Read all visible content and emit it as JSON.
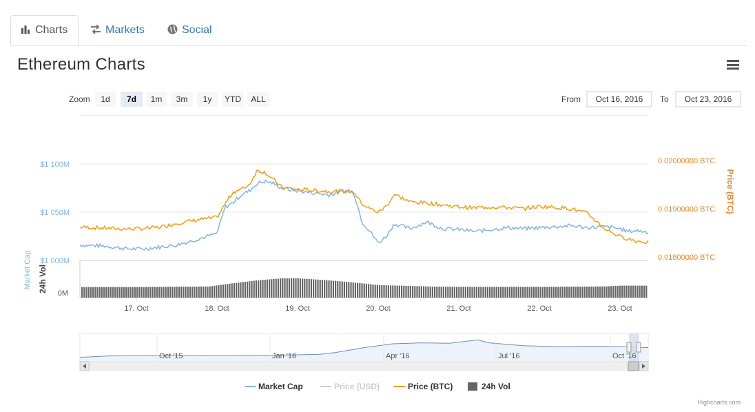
{
  "tabs": [
    {
      "label": "Charts",
      "icon": "bar-chart-icon",
      "active": true
    },
    {
      "label": "Markets",
      "icon": "exchange-arrows-icon",
      "active": false
    },
    {
      "label": "Social",
      "icon": "globe-icon",
      "active": false
    }
  ],
  "page_title": "Ethereum Charts",
  "range_selector": {
    "zoom_label": "Zoom",
    "buttons": [
      "1d",
      "7d",
      "1m",
      "3m",
      "1y",
      "YTD",
      "ALL"
    ],
    "selected": "7d",
    "from_label": "From",
    "from_value": "Oct 16, 2016",
    "to_label": "To",
    "to_value": "Oct 23, 2016"
  },
  "colors": {
    "market_cap": "#7cb5ec",
    "price_btc": "#f39c12",
    "price_usd": "#cccccc",
    "volume": "#666666",
    "navigator_fill": "#eef3fb"
  },
  "credits": "Highcharts.com",
  "chart_data": {
    "type": "line",
    "x": [
      "16 Oct",
      "17 Oct",
      "18 Oct",
      "19 Oct",
      "20 Oct",
      "21 Oct",
      "22 Oct",
      "23 Oct"
    ],
    "x_ticks": [
      "17. Oct",
      "18. Oct",
      "19. Oct",
      "20. Oct",
      "21. Oct",
      "22. Oct",
      "23. Oct"
    ],
    "y_left": {
      "title": "Market Cap",
      "ticks": [
        "$1 000M",
        "$1 050M",
        "$1 100M"
      ],
      "range": [
        1000,
        1100
      ]
    },
    "y_right": {
      "title": "Price (BTC)",
      "ticks": [
        "0.01800000 BTC",
        "0.01900000 BTC",
        "0.02000000 BTC"
      ],
      "range": [
        0.018,
        0.02
      ]
    },
    "y_volume": {
      "title": "24h Vol",
      "ticks": [
        "0M"
      ]
    },
    "series": [
      {
        "name": "Market Cap",
        "unit": "$M",
        "points": [
          [
            0,
            1018
          ],
          [
            0.3,
            1016
          ],
          [
            0.6,
            1015
          ],
          [
            0.9,
            1012
          ],
          [
            1.1,
            1012
          ],
          [
            1.3,
            1014
          ],
          [
            1.5,
            1016
          ],
          [
            1.8,
            1023
          ],
          [
            2.0,
            1028
          ],
          [
            2.1,
            1055
          ],
          [
            2.2,
            1060
          ],
          [
            2.3,
            1068
          ],
          [
            2.4,
            1072
          ],
          [
            2.5,
            1080
          ],
          [
            2.6,
            1082
          ],
          [
            2.7,
            1080
          ],
          [
            2.8,
            1075
          ],
          [
            3.0,
            1072
          ],
          [
            3.2,
            1070
          ],
          [
            3.4,
            1068
          ],
          [
            3.6,
            1072
          ],
          [
            3.7,
            1070
          ],
          [
            3.8,
            1040
          ],
          [
            3.9,
            1030
          ],
          [
            4.0,
            1018
          ],
          [
            4.1,
            1025
          ],
          [
            4.2,
            1038
          ],
          [
            4.4,
            1033
          ],
          [
            4.6,
            1040
          ],
          [
            4.8,
            1033
          ],
          [
            5.0,
            1032
          ],
          [
            5.2,
            1030
          ],
          [
            5.4,
            1032
          ],
          [
            5.6,
            1034
          ],
          [
            5.8,
            1033
          ],
          [
            6.0,
            1034
          ],
          [
            6.2,
            1035
          ],
          [
            6.4,
            1036
          ],
          [
            6.6,
            1034
          ],
          [
            6.8,
            1035
          ],
          [
            7.0,
            1033
          ],
          [
            7.1,
            1030
          ],
          [
            7.2,
            1031
          ],
          [
            7.4,
            1029
          ]
        ]
      },
      {
        "name": "Price (USD)",
        "hidden": true,
        "points": []
      },
      {
        "name": "Price (BTC)",
        "unit": "BTC",
        "points": [
          [
            0,
            0.01866
          ],
          [
            0.3,
            0.01862
          ],
          [
            0.6,
            0.0186
          ],
          [
            0.9,
            0.01858
          ],
          [
            1.1,
            0.01859
          ],
          [
            1.3,
            0.01862
          ],
          [
            1.5,
            0.0187
          ],
          [
            1.8,
            0.01878
          ],
          [
            2.0,
            0.01882
          ],
          [
            2.1,
            0.0191
          ],
          [
            2.2,
            0.01935
          ],
          [
            2.3,
            0.0194
          ],
          [
            2.4,
            0.0195
          ],
          [
            2.5,
            0.0198
          ],
          [
            2.6,
            0.01975
          ],
          [
            2.7,
            0.0196
          ],
          [
            2.8,
            0.01945
          ],
          [
            3.0,
            0.0194
          ],
          [
            3.2,
            0.01938
          ],
          [
            3.4,
            0.01936
          ],
          [
            3.6,
            0.01937
          ],
          [
            3.7,
            0.01935
          ],
          [
            3.8,
            0.0191
          ],
          [
            3.9,
            0.019
          ],
          [
            4.0,
            0.01893
          ],
          [
            4.1,
            0.01905
          ],
          [
            4.2,
            0.0193
          ],
          [
            4.4,
            0.01914
          ],
          [
            4.6,
            0.01912
          ],
          [
            4.8,
            0.01908
          ],
          [
            5.0,
            0.01904
          ],
          [
            5.2,
            0.01902
          ],
          [
            5.4,
            0.01904
          ],
          [
            5.6,
            0.01903
          ],
          [
            5.8,
            0.019
          ],
          [
            6.0,
            0.01905
          ],
          [
            6.2,
            0.01903
          ],
          [
            6.4,
            0.019
          ],
          [
            6.6,
            0.0189
          ],
          [
            6.8,
            0.0186
          ],
          [
            7.0,
            0.01842
          ],
          [
            7.1,
            0.01838
          ],
          [
            7.2,
            0.01833
          ],
          [
            7.4,
            0.0183
          ]
        ]
      },
      {
        "name": "24h Vol",
        "unit": "M",
        "points": [
          [
            0,
            0.55
          ],
          [
            1.0,
            0.55
          ],
          [
            1.9,
            0.58
          ],
          [
            2.2,
            0.75
          ],
          [
            2.5,
            0.9
          ],
          [
            2.8,
            1.0
          ],
          [
            3.0,
            1.0
          ],
          [
            3.3,
            0.92
          ],
          [
            3.6,
            0.82
          ],
          [
            4.0,
            0.65
          ],
          [
            4.6,
            0.58
          ],
          [
            5.0,
            0.56
          ],
          [
            6.0,
            0.56
          ],
          [
            6.8,
            0.58
          ],
          [
            7.0,
            0.62
          ],
          [
            7.4,
            0.62
          ]
        ]
      }
    ],
    "navigator": {
      "x_ticks": [
        "Oct '15",
        "Jan '16",
        "Apr '16",
        "Jul '16",
        "Oct '16"
      ],
      "points": [
        [
          0,
          0.05
        ],
        [
          0.05,
          0.12
        ],
        [
          0.2,
          0.14
        ],
        [
          0.35,
          0.16
        ],
        [
          0.42,
          0.2
        ],
        [
          0.45,
          0.3
        ],
        [
          0.5,
          0.55
        ],
        [
          0.55,
          0.75
        ],
        [
          0.6,
          0.8
        ],
        [
          0.65,
          0.78
        ],
        [
          0.7,
          0.95
        ],
        [
          0.72,
          0.8
        ],
        [
          0.78,
          0.65
        ],
        [
          0.85,
          0.6
        ],
        [
          0.9,
          0.62
        ],
        [
          0.95,
          0.6
        ],
        [
          1.0,
          0.55
        ]
      ]
    },
    "legend": [
      "Market Cap",
      "Price (USD)",
      "Price (BTC)",
      "24h Vol"
    ],
    "legend_position": "bottom-center",
    "grid": true
  }
}
